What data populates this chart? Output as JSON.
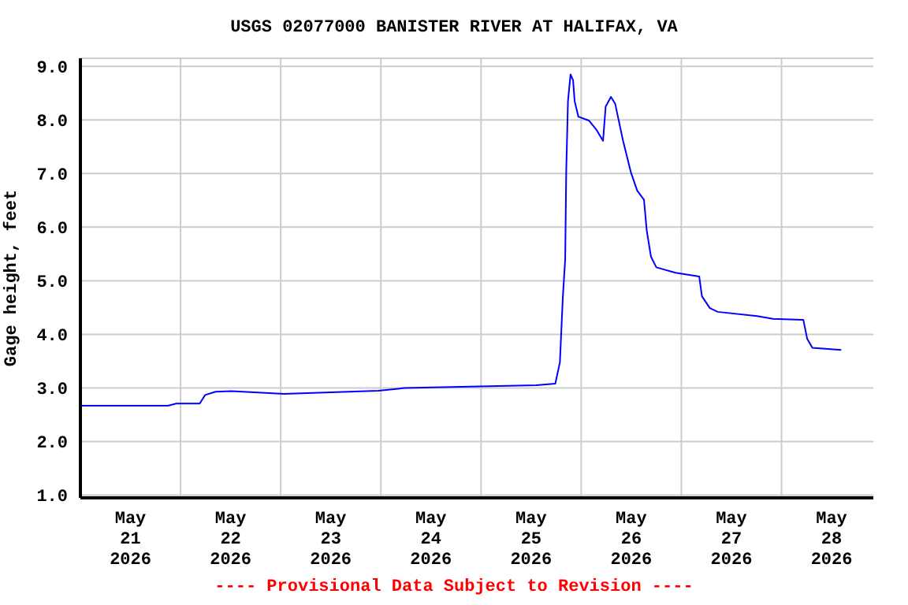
{
  "chart_data": {
    "type": "line",
    "title": "USGS 02077000 BANISTER RIVER AT HALIFAX, VA",
    "ylabel": "Gage height, feet",
    "annotations": [
      "---- Provisional Data Subject to Revision ----"
    ],
    "x": [
      "2026-05-21T00:15",
      "2026-05-21T21:00",
      "2026-05-21T23:00",
      "2026-05-22T04:36",
      "2026-05-22T05:54",
      "2026-05-22T08:24",
      "2026-05-22T12:12",
      "2026-05-23T00:48",
      "2026-05-23T23:24",
      "2026-05-24T05:48",
      "2026-05-25T13:12",
      "2026-05-25T17:48",
      "2026-05-25T18:54",
      "2026-05-25T19:36",
      "2026-05-25T20:10",
      "2026-05-25T20:25",
      "2026-05-25T20:50",
      "2026-05-25T21:27",
      "2026-05-25T22:03",
      "2026-05-25T22:26",
      "2026-05-25T23:20",
      "2026-05-26T01:50",
      "2026-05-26T03:43",
      "2026-05-26T05:14",
      "2026-05-26T05:52",
      "2026-05-26T07:08",
      "2026-05-26T08:09",
      "2026-05-26T10:02",
      "2026-05-26T11:55",
      "2026-05-26T13:26",
      "2026-05-26T15:03",
      "2026-05-26T15:42",
      "2026-05-26T16:43",
      "2026-05-26T18:00",
      "2026-05-26T22:37",
      "2026-05-27T04:17",
      "2026-05-27T04:56",
      "2026-05-27T06:50",
      "2026-05-27T08:43",
      "2026-05-27T18:10",
      "2026-05-27T21:57",
      "2026-05-28T05:14",
      "2026-05-28T06:09",
      "2026-05-28T07:24",
      "2026-05-28T14:19"
    ],
    "series": [
      {
        "color": "#0000ff",
        "values": [
          2.67,
          2.67,
          2.71,
          2.71,
          2.87,
          2.93,
          2.94,
          2.89,
          2.95,
          3.0,
          3.05,
          3.08,
          3.48,
          4.69,
          5.4,
          7.05,
          8.35,
          8.85,
          8.74,
          8.35,
          8.06,
          7.99,
          7.81,
          7.61,
          8.25,
          8.43,
          8.3,
          7.61,
          7.02,
          6.68,
          6.51,
          5.94,
          5.45,
          5.25,
          5.15,
          5.08,
          4.71,
          4.49,
          4.42,
          4.34,
          4.29,
          4.27,
          3.92,
          3.75,
          3.71
        ]
      }
    ],
    "xlim": [
      "2026-05-21T00:00",
      "2026-05-28T22:00"
    ],
    "xticks": [
      {
        "value": "2026-05-21T00:00",
        "label": null
      },
      {
        "value": "2026-05-21T12:00",
        "label": "May\n21\n2026"
      },
      {
        "value": "2026-05-22T00:00",
        "label": null
      },
      {
        "value": "2026-05-22T12:00",
        "label": "May\n22\n2026"
      },
      {
        "value": "2026-05-23T00:00",
        "label": null
      },
      {
        "value": "2026-05-23T12:00",
        "label": "May\n23\n2026"
      },
      {
        "value": "2026-05-24T00:00",
        "label": null
      },
      {
        "value": "2026-05-24T12:00",
        "label": "May\n24\n2026"
      },
      {
        "value": "2026-05-25T00:00",
        "label": null
      },
      {
        "value": "2026-05-25T12:00",
        "label": "May\n25\n2026"
      },
      {
        "value": "2026-05-26T00:00",
        "label": null
      },
      {
        "value": "2026-05-26T12:00",
        "label": "May\n26\n2026"
      },
      {
        "value": "2026-05-27T00:00",
        "label": null
      },
      {
        "value": "2026-05-27T12:00",
        "label": "May\n27\n2026"
      },
      {
        "value": "2026-05-28T00:00",
        "label": null
      },
      {
        "value": "2026-05-28T12:00",
        "label": "May\n28\n2026"
      }
    ],
    "ylim": [
      0.95,
      9.15
    ],
    "yticks": [
      {
        "value": 1,
        "label": "1.0"
      },
      {
        "value": 2,
        "label": "2.0"
      },
      {
        "value": 3,
        "label": "3.0"
      },
      {
        "value": 4,
        "label": "4.0"
      },
      {
        "value": 5,
        "label": "5.0"
      },
      {
        "value": 6,
        "label": "6.0"
      },
      {
        "value": 7,
        "label": "7.0"
      },
      {
        "value": 8,
        "label": "8.0"
      },
      {
        "value": 9,
        "label": "9.0"
      }
    ],
    "grid": true,
    "legend": false,
    "marker": "none",
    "line_style": "solid"
  }
}
